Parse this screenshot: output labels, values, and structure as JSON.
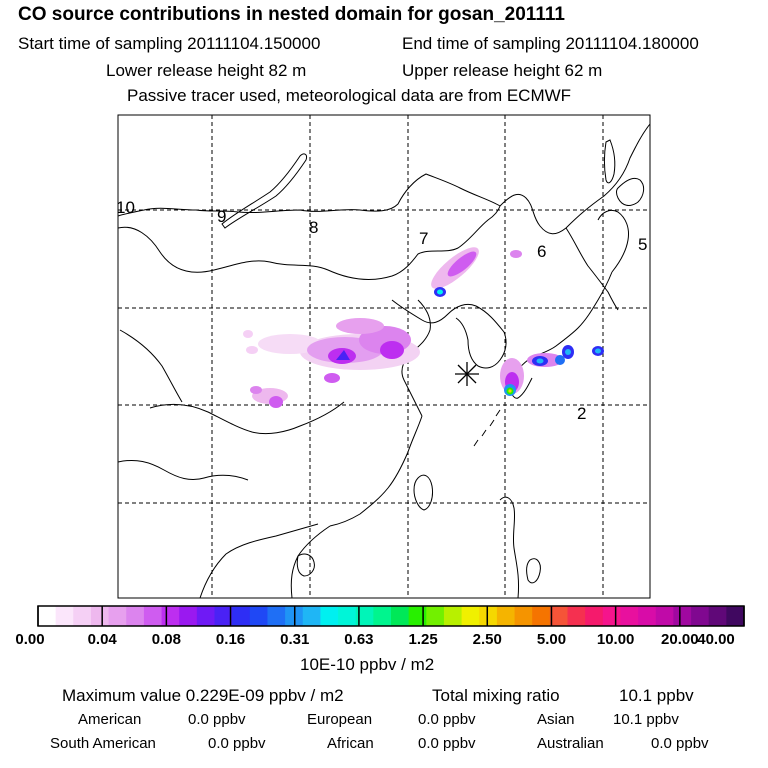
{
  "header": {
    "title": "CO  source contributions in nested domain for gosan_201111",
    "start_label": "Start time of sampling 20111104.150000",
    "end_label": "End time of sampling 20111104.180000",
    "lower_label": "Lower release height   82 m",
    "upper_label": "Upper release height   62 m",
    "note": "Passive tracer used, meteorological data are from ECMWF"
  },
  "map": {
    "region_labels": [
      "10",
      "9",
      "8",
      "7",
      "6",
      "5",
      "2"
    ],
    "receptor_marker": "asterisk-icon"
  },
  "colorbar": {
    "colors": [
      "#ffffff",
      "#fbe6fb",
      "#f5d0f5",
      "#eeb8ee",
      "#e7a0ee",
      "#dc84ee",
      "#cf5cf0",
      "#bd2ef0",
      "#9a19f0",
      "#6f1af5",
      "#4a22f5",
      "#2e2ef5",
      "#1f48f5",
      "#1f6ff5",
      "#1f94f5",
      "#1fb6f5",
      "#00f0f0",
      "#00f5d8",
      "#00f5b8",
      "#00f58e",
      "#00e858",
      "#28f000",
      "#72f000",
      "#b8f000",
      "#f0f000",
      "#f5d800",
      "#f5b400",
      "#f59400",
      "#f57400",
      "#f55438",
      "#f53050",
      "#f51a6c",
      "#f5148c",
      "#e8109e",
      "#d80ca8",
      "#c00aa8",
      "#a008a0",
      "#800890",
      "#600878",
      "#400860"
    ],
    "ticks": [
      "0.00",
      "0.04",
      "0.08",
      "0.16",
      "0.31",
      "0.63",
      "1.25",
      "2.50",
      "5.00",
      "10.00",
      "20.00",
      "40.00"
    ],
    "unit": "10E-10 ppbv / m2"
  },
  "summary": {
    "max_label": "Maximum value  0.229E-09 ppbv / m2",
    "total_label": "Total mixing ratio",
    "total_value": "10.1 ppbv",
    "sources": [
      {
        "name": "American",
        "value": "0.0 ppbv"
      },
      {
        "name": "European",
        "value": "0.0 ppbv"
      },
      {
        "name": "Asian",
        "value": "10.1 ppbv"
      },
      {
        "name": "South American",
        "value": "0.0 ppbv"
      },
      {
        "name": "African",
        "value": "0.0 ppbv"
      },
      {
        "name": "Australian",
        "value": "0.0 ppbv"
      }
    ]
  }
}
